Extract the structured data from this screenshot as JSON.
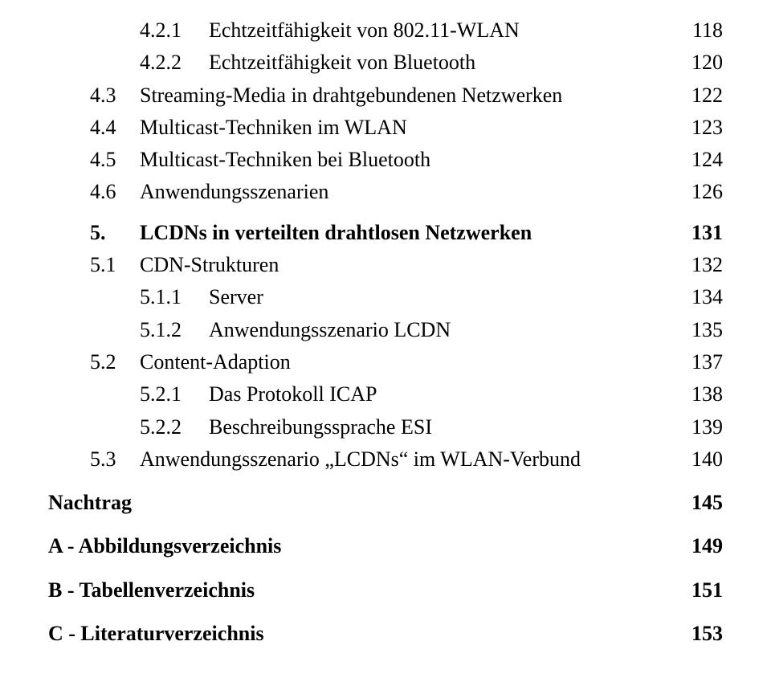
{
  "font": {
    "family": "Times New Roman",
    "size_pt_body": 26
  },
  "colors": {
    "text": "#000000",
    "background": "#ffffff"
  },
  "toc": [
    {
      "level": 3,
      "num": "4.2.1",
      "title": "Echtzeitfähigkeit von 802.11-WLAN",
      "page": "118",
      "bold": false
    },
    {
      "level": 3,
      "num": "4.2.2",
      "title": "Echtzeitfähigkeit von Bluetooth",
      "page": "120",
      "bold": false
    },
    {
      "level": 2,
      "num": "4.3",
      "title": "Streaming-Media in drahtgebundenen Netzwerken",
      "page": "122",
      "bold": false
    },
    {
      "level": 2,
      "num": "4.4",
      "title": "Multicast-Techniken im WLAN",
      "page": "123",
      "bold": false
    },
    {
      "level": 2,
      "num": "4.5",
      "title": "Multicast-Techniken bei Bluetooth",
      "page": "124",
      "bold": false
    },
    {
      "level": 2,
      "num": "4.6",
      "title": "Anwendungsszenarien",
      "page": "126",
      "bold": false
    },
    {
      "level": 1,
      "num": "5.",
      "title": "LCDNs in verteilten drahtlosen Netzwerken",
      "page": "131",
      "bold": true,
      "space": "chapter"
    },
    {
      "level": 2,
      "num": "5.1",
      "title": "CDN-Strukturen",
      "page": "132",
      "bold": false
    },
    {
      "level": 3,
      "num": "5.1.1",
      "title": "Server",
      "page": "134",
      "bold": false
    },
    {
      "level": 3,
      "num": "5.1.2",
      "title": "Anwendungsszenario LCDN",
      "page": "135",
      "bold": false
    },
    {
      "level": 2,
      "num": "5.2",
      "title": "Content-Adaption",
      "page": "137",
      "bold": false
    },
    {
      "level": 3,
      "num": "5.2.1",
      "title": "Das Protokoll ICAP",
      "page": "138",
      "bold": false
    },
    {
      "level": 3,
      "num": "5.2.2",
      "title": "Beschreibungssprache ESI",
      "page": "139",
      "bold": false
    },
    {
      "level": 2,
      "num": "5.3",
      "title": "Anwendungsszenario „LCDNs“ im WLAN-Verbund",
      "page": "140",
      "bold": false
    },
    {
      "level": 0,
      "num": "",
      "title": "Nachtrag",
      "page": "145",
      "bold": true,
      "space": "back"
    },
    {
      "level": 0,
      "num": "",
      "title": "A - Abbildungsverzeichnis",
      "page": "149",
      "bold": true,
      "space": "back"
    },
    {
      "level": 0,
      "num": "",
      "title": "B - Tabellenverzeichnis",
      "page": "151",
      "bold": true,
      "space": "back"
    },
    {
      "level": 0,
      "num": "",
      "title": "C - Literaturverzeichnis",
      "page": "153",
      "bold": true,
      "space": "back"
    }
  ]
}
